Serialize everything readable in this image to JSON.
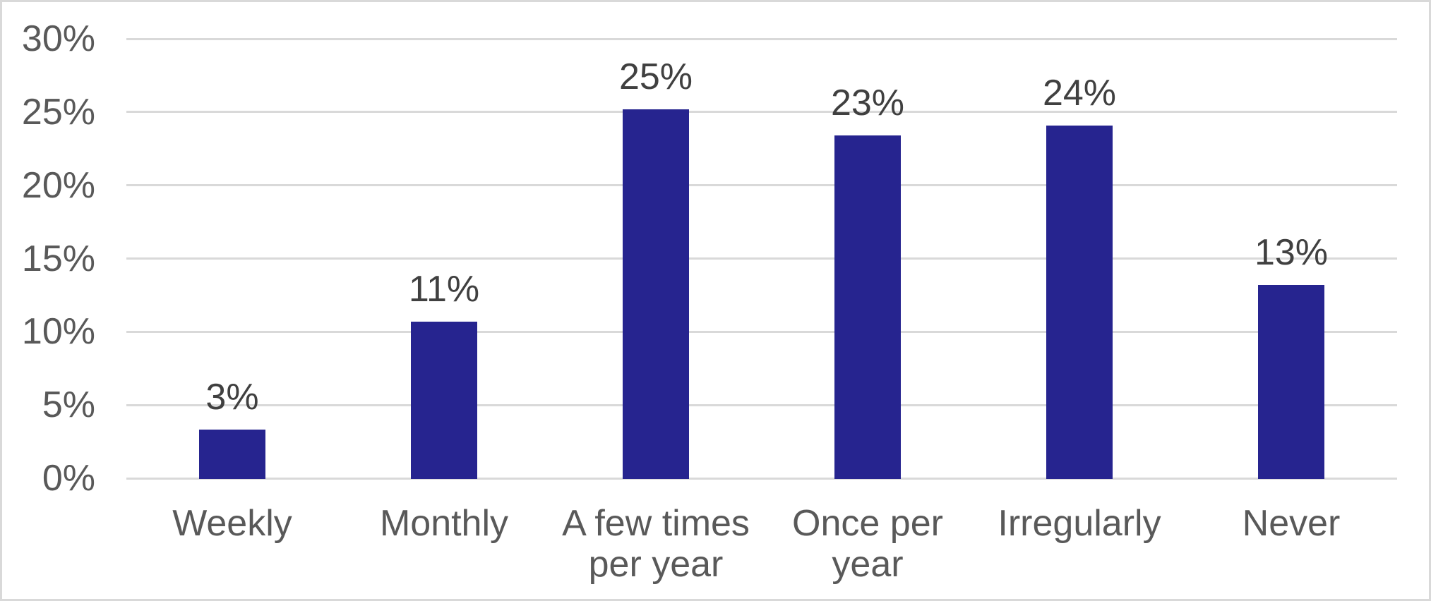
{
  "chart_data": {
    "type": "bar",
    "title": "",
    "xlabel": "",
    "ylabel": "",
    "categories": [
      "Weekly",
      "Monthly",
      "A few times per year",
      "Once per year",
      "Irregularly",
      "Never"
    ],
    "category_lines": [
      [
        "Weekly"
      ],
      [
        "Monthly"
      ],
      [
        "A few times",
        "per year"
      ],
      [
        "Once per",
        "year"
      ],
      [
        "Irregularly"
      ],
      [
        "Never"
      ]
    ],
    "values": [
      3,
      11,
      25,
      23,
      24,
      13
    ],
    "values_precise": [
      3.3,
      10.7,
      25.2,
      23.4,
      24.1,
      13.2
    ],
    "data_labels": [
      "3%",
      "11%",
      "25%",
      "23%",
      "24%",
      "13%"
    ],
    "ylim": [
      0,
      30
    ],
    "ytick_step": 5,
    "ytick_labels": [
      "0%",
      "5%",
      "10%",
      "15%",
      "20%",
      "25%",
      "30%"
    ],
    "grid": true,
    "legend": "none",
    "colors": {
      "bar": "#26248F",
      "gridline": "#D9D9D9",
      "tick_label": "#595959",
      "data_label": "#404040",
      "category_label": "#595959",
      "background": "#FFFFFF",
      "frame_border": "#D9D9D9"
    }
  }
}
